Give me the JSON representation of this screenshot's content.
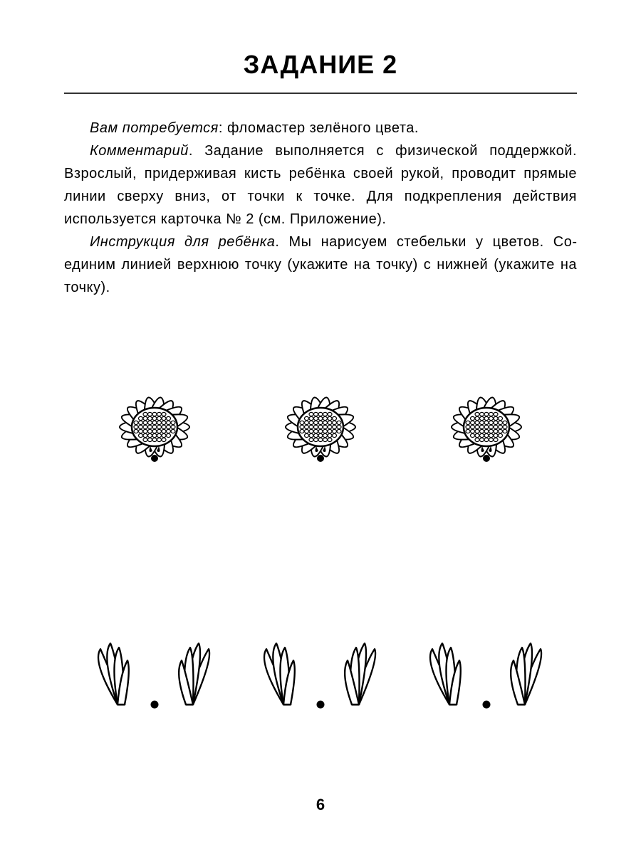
{
  "title": "ЗАДАНИЕ 2",
  "materials_label": "Вам потребуется",
  "materials_text": ": фломастер зелёного цвета.",
  "comment_label": "Комментарий",
  "comment_text": ". Задание выполняется с физической поддержкой. Взрослый, придерживая кисть ребёнка своей рукой, проводит прямые линии сверху вниз, от точки к точке. Для подкрепления действия используется карточка № 2 (см. Приложение).",
  "instruction_label": "Инструкция для ребёнка",
  "instruction_text": ". Мы нарисуем стебельки у цветов. Со­единим линией верхнюю точку (укажите на точку) с нижней (ука­жите на точку).",
  "page_number": "6",
  "styling": {
    "background_color": "#ffffff",
    "text_color": "#000000",
    "rule_color": "#333333",
    "title_fontsize": 36,
    "body_fontsize": 20,
    "flower_count": 3,
    "grass_count": 3,
    "stroke_color": "#000000",
    "fill_color": "#ffffff",
    "dot_color": "#000000"
  }
}
